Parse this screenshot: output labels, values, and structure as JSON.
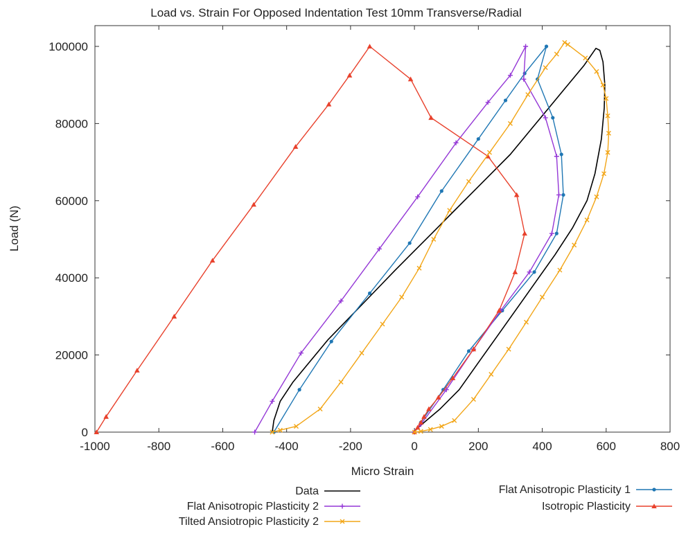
{
  "chart_data": {
    "type": "line",
    "title": "Load vs. Strain For Opposed Indentation Test 10mm Transverse/Radial",
    "xlabel": "Micro Strain",
    "ylabel": "Load (N)",
    "xlim": [
      -1000,
      800
    ],
    "ylim": [
      0,
      105000
    ],
    "x_ticks": [
      -1000,
      -800,
      -600,
      -400,
      -200,
      0,
      200,
      400,
      600,
      800
    ],
    "y_ticks": [
      0,
      20000,
      40000,
      60000,
      80000,
      100000
    ],
    "grid": false,
    "legend_position": "bottom",
    "series": [
      {
        "name": "Data",
        "color": "#000000",
        "marker": "none",
        "points": [
          [
            -445,
            0
          ],
          [
            -440,
            3000
          ],
          [
            -420,
            8000
          ],
          [
            -380,
            13000
          ],
          [
            -330,
            18000
          ],
          [
            -270,
            24000
          ],
          [
            -200,
            30000
          ],
          [
            -130,
            36000
          ],
          [
            -60,
            42000
          ],
          [
            0,
            47000
          ],
          [
            60,
            52000
          ],
          [
            120,
            57000
          ],
          [
            180,
            62000
          ],
          [
            240,
            67000
          ],
          [
            300,
            72000
          ],
          [
            360,
            78000
          ],
          [
            420,
            84000
          ],
          [
            480,
            90000
          ],
          [
            530,
            95000
          ],
          [
            568,
            99500
          ],
          [
            580,
            99000
          ],
          [
            590,
            96000
          ],
          [
            596,
            90000
          ],
          [
            594,
            84000
          ],
          [
            585,
            76000
          ],
          [
            565,
            67000
          ],
          [
            540,
            60000
          ],
          [
            495,
            53000
          ],
          [
            440,
            46000
          ],
          [
            380,
            39000
          ],
          [
            320,
            32000
          ],
          [
            260,
            25000
          ],
          [
            200,
            18000
          ],
          [
            140,
            11000
          ],
          [
            80,
            6000
          ],
          [
            30,
            2500
          ],
          [
            0,
            300
          ]
        ]
      },
      {
        "name": "Flat Anisotropic Plasticity 1",
        "color": "#1f77b4",
        "marker": "dot",
        "points": [
          [
            -440,
            0
          ],
          [
            -360,
            11000
          ],
          [
            -260,
            23500
          ],
          [
            -140,
            36000
          ],
          [
            -15,
            49000
          ],
          [
            85,
            62500
          ],
          [
            200,
            76000
          ],
          [
            285,
            86000
          ],
          [
            345,
            93000
          ],
          [
            413,
            100000
          ],
          [
            385,
            91500
          ],
          [
            433,
            81500
          ],
          [
            460,
            72000
          ],
          [
            466,
            61500
          ],
          [
            445,
            51500
          ],
          [
            375,
            41500
          ],
          [
            275,
            31500
          ],
          [
            170,
            21000
          ],
          [
            90,
            11000
          ],
          [
            20,
            2500
          ],
          [
            0,
            0
          ]
        ]
      },
      {
        "name": "Flat Anisotropic Plasticity 2",
        "color": "#9437d6",
        "marker": "plus",
        "points": [
          [
            -500,
            0
          ],
          [
            -445,
            8000
          ],
          [
            -355,
            20500
          ],
          [
            -230,
            34000
          ],
          [
            -110,
            47500
          ],
          [
            10,
            61000
          ],
          [
            130,
            75000
          ],
          [
            230,
            85500
          ],
          [
            300,
            92500
          ],
          [
            348,
            100000
          ],
          [
            342,
            91500
          ],
          [
            410,
            81500
          ],
          [
            445,
            71500
          ],
          [
            452,
            61500
          ],
          [
            430,
            51500
          ],
          [
            360,
            41500
          ],
          [
            270,
            31500
          ],
          [
            185,
            21500
          ],
          [
            100,
            11000
          ],
          [
            20,
            2000
          ],
          [
            0,
            0
          ]
        ]
      },
      {
        "name": "Isotropic Plasticity",
        "color": "#e8412c",
        "marker": "triangle",
        "points": [
          [
            -995,
            0
          ],
          [
            -965,
            4000
          ],
          [
            -868,
            16000
          ],
          [
            -752,
            30000
          ],
          [
            -632,
            44500
          ],
          [
            -503,
            59000
          ],
          [
            -372,
            74000
          ],
          [
            -268,
            85000
          ],
          [
            -203,
            92500
          ],
          [
            -140,
            100000
          ],
          [
            -12,
            91500
          ],
          [
            52,
            81500
          ],
          [
            230,
            71500
          ],
          [
            320,
            61500
          ],
          [
            345,
            51500
          ],
          [
            315,
            41500
          ],
          [
            265,
            31500
          ],
          [
            185,
            21500
          ],
          [
            120,
            14000
          ],
          [
            75,
            9000
          ],
          [
            45,
            6000
          ],
          [
            30,
            4000
          ],
          [
            20,
            2500
          ],
          [
            10,
            1200
          ],
          [
            0,
            0
          ]
        ]
      },
      {
        "name": "Tilted Ansiotropic Plasticity 2",
        "color": "#f2a516",
        "marker": "x",
        "points": [
          [
            -445,
            0
          ],
          [
            -420,
            500
          ],
          [
            -370,
            1500
          ],
          [
            -295,
            6000
          ],
          [
            -230,
            13000
          ],
          [
            -165,
            20500
          ],
          [
            -100,
            28000
          ],
          [
            -40,
            35000
          ],
          [
            15,
            42500
          ],
          [
            60,
            50000
          ],
          [
            110,
            57500
          ],
          [
            170,
            65000
          ],
          [
            235,
            72500
          ],
          [
            300,
            80000
          ],
          [
            355,
            87500
          ],
          [
            410,
            94500
          ],
          [
            445,
            98000
          ],
          [
            470,
            101000
          ],
          [
            480,
            100500
          ],
          [
            535,
            97000
          ],
          [
            570,
            93500
          ],
          [
            590,
            90000
          ],
          [
            600,
            86500
          ],
          [
            605,
            82000
          ],
          [
            608,
            77500
          ],
          [
            605,
            72500
          ],
          [
            593,
            67000
          ],
          [
            570,
            61000
          ],
          [
            540,
            55000
          ],
          [
            500,
            48500
          ],
          [
            455,
            42000
          ],
          [
            400,
            35000
          ],
          [
            350,
            28500
          ],
          [
            295,
            21500
          ],
          [
            240,
            15000
          ],
          [
            185,
            8500
          ],
          [
            125,
            3000
          ],
          [
            85,
            1500
          ],
          [
            50,
            700
          ],
          [
            20,
            200
          ],
          [
            0,
            0
          ]
        ]
      }
    ],
    "legend": {
      "left_column": [
        "Data",
        "Flat Anisotropic Plasticity 2",
        "Tilted Ansiotropic Plasticity 2"
      ],
      "right_column": [
        "Flat Anisotropic Plasticity 1",
        "Isotropic Plasticity"
      ]
    }
  }
}
